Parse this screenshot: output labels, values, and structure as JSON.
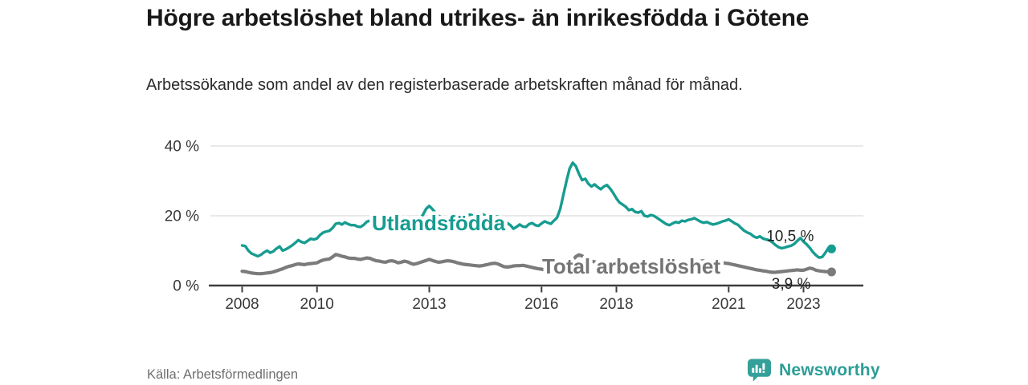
{
  "header": {
    "title": "Högre arbetslöshet bland utrikes- än inrikesfödda i Götene",
    "subtitle": "Arbetssökande som andel av den registerbaserade arbetskraften månad för månad."
  },
  "footer": {
    "source": "Källa: Arbetsförmedlingen",
    "brand": "Newsworthy"
  },
  "chart_data": {
    "type": "line",
    "title": "Högre arbetslöshet bland utrikes- än inrikesfödda i Götene",
    "subtitle": "Arbetssökande som andel av den registerbaserade arbetskraften månad för månad.",
    "x_interval": "monthly",
    "x_start": "2008-01",
    "x_end": "2023-10",
    "xlabel": "",
    "ylabel": "",
    "unit": "%",
    "ylim": [
      0,
      40
    ],
    "grid": "horizontal",
    "legend_position": "inline-labels",
    "y_ticks": [
      {
        "value": 0,
        "label": "0 %"
      },
      {
        "value": 20,
        "label": "20 %"
      },
      {
        "value": 40,
        "label": "40 %"
      }
    ],
    "x_ticks": [
      {
        "year": 2008,
        "label": "2008"
      },
      {
        "year": 2010,
        "label": "2010"
      },
      {
        "year": 2013,
        "label": "2013"
      },
      {
        "year": 2016,
        "label": "2016"
      },
      {
        "year": 2018,
        "label": "2018"
      },
      {
        "year": 2021,
        "label": "2021"
      },
      {
        "year": 2023,
        "label": "2023"
      }
    ],
    "series": [
      {
        "name": "Utlandsfödda",
        "color": "#169c90",
        "end_value": 10.5,
        "end_label": "10,5 %",
        "values": [
          11.5,
          11.3,
          10.0,
          9.2,
          8.8,
          8.4,
          8.8,
          9.5,
          10.0,
          9.4,
          9.8,
          10.6,
          11.2,
          10.0,
          10.4,
          10.9,
          11.5,
          12.2,
          13.0,
          12.5,
          12.2,
          12.8,
          13.4,
          13.2,
          13.5,
          14.5,
          15.2,
          15.5,
          15.7,
          16.5,
          17.7,
          17.9,
          17.5,
          18.1,
          17.6,
          17.3,
          17.3,
          16.9,
          16.8,
          17.4,
          18.3,
          18.6,
          17.5,
          16.7,
          17.0,
          17.6,
          18.0,
          18.3,
          18.0,
          17.4,
          16.9,
          17.2,
          17.8,
          18.0,
          17.6,
          17.9,
          18.4,
          19.2,
          20.3,
          22.0,
          22.8,
          21.9,
          20.8,
          20.0,
          19.5,
          19.2,
          19.5,
          19.8,
          20.0,
          19.7,
          19.5,
          19.8,
          20.0,
          20.3,
          20.1,
          19.9,
          20.2,
          20.4,
          20.1,
          19.9,
          20.0,
          19.8,
          19.8,
          19.4,
          18.6,
          17.9,
          17.3,
          16.3,
          16.8,
          17.5,
          16.9,
          16.8,
          17.6,
          17.9,
          17.3,
          17.1,
          17.8,
          18.4,
          18.0,
          17.7,
          18.6,
          19.5,
          22.0,
          26.0,
          30.0,
          33.5,
          35.2,
          34.2,
          32.0,
          30.2,
          30.6,
          29.2,
          28.4,
          29.0,
          28.2,
          27.6,
          28.4,
          28.8,
          27.8,
          26.5,
          25.0,
          23.8,
          23.2,
          22.6,
          21.6,
          21.9,
          21.1,
          20.9,
          21.3,
          20.0,
          19.8,
          20.2,
          20.0,
          19.4,
          18.8,
          18.2,
          17.6,
          17.3,
          17.8,
          18.2,
          18.0,
          18.6,
          18.4,
          18.8,
          19.0,
          19.3,
          18.8,
          18.3,
          18.0,
          18.2,
          17.8,
          17.5,
          17.7,
          18.0,
          18.4,
          18.6,
          19.0,
          18.4,
          17.8,
          17.4,
          16.5,
          15.7,
          15.2,
          14.8,
          14.1,
          13.7,
          14.1,
          13.5,
          13.2,
          13.0,
          12.4,
          11.6,
          11.0,
          10.7,
          10.9,
          11.2,
          11.4,
          11.9,
          12.8,
          13.6,
          12.6,
          11.8,
          10.8,
          9.6,
          8.7,
          8.0,
          8.2,
          9.4,
          10.8,
          10.5
        ]
      },
      {
        "name": "Total arbetslöshet",
        "color": "#7b7b7b",
        "end_value": 3.9,
        "end_label": "3,9 %",
        "values": [
          4.1,
          4.0,
          3.8,
          3.6,
          3.5,
          3.4,
          3.4,
          3.5,
          3.6,
          3.7,
          3.9,
          4.2,
          4.5,
          4.8,
          5.2,
          5.5,
          5.7,
          6.0,
          6.2,
          6.1,
          6.0,
          6.2,
          6.3,
          6.4,
          6.5,
          7.0,
          7.3,
          7.5,
          7.6,
          8.2,
          8.9,
          8.7,
          8.4,
          8.2,
          7.9,
          7.8,
          7.8,
          7.6,
          7.5,
          7.7,
          7.9,
          7.8,
          7.4,
          7.1,
          7.0,
          6.8,
          6.7,
          7.0,
          7.1,
          6.9,
          6.5,
          6.7,
          7.0,
          6.8,
          6.4,
          6.1,
          6.3,
          6.6,
          6.9,
          7.2,
          7.5,
          7.2,
          6.9,
          6.7,
          6.8,
          7.0,
          7.1,
          7.0,
          6.8,
          6.5,
          6.3,
          6.1,
          6.0,
          5.9,
          5.8,
          5.7,
          5.6,
          5.7,
          5.9,
          6.1,
          6.3,
          6.4,
          6.2,
          5.8,
          5.4,
          5.3,
          5.4,
          5.6,
          5.7,
          5.7,
          5.8,
          5.6,
          5.4,
          5.2,
          5.0,
          4.8,
          4.7,
          4.5,
          4.4,
          4.6,
          4.8,
          5.0,
          5.2,
          5.4,
          5.6,
          6.2,
          7.2,
          8.3,
          8.8,
          8.5,
          7.9,
          7.4,
          7.0,
          6.8,
          6.6,
          6.5,
          6.4,
          6.3,
          6.2,
          6.1,
          6.0,
          6.0,
          5.9,
          5.8,
          5.7,
          5.7,
          5.8,
          5.8,
          5.7,
          5.6,
          5.5,
          5.6,
          5.6,
          5.7,
          5.7,
          5.6,
          5.5,
          5.6,
          5.7,
          5.8,
          5.9,
          6.0,
          6.1,
          6.2,
          6.3,
          6.5,
          6.7,
          7.0,
          7.1,
          7.0,
          6.8,
          6.6,
          6.7,
          6.6,
          6.5,
          6.4,
          6.3,
          6.1,
          5.9,
          5.7,
          5.5,
          5.3,
          5.1,
          4.9,
          4.7,
          4.5,
          4.4,
          4.2,
          4.1,
          3.9,
          3.8,
          3.8,
          3.9,
          4.0,
          4.1,
          4.2,
          4.3,
          4.4,
          4.5,
          4.4,
          4.4,
          4.7,
          5.0,
          4.8,
          4.4,
          4.2,
          4.1,
          4.0,
          4.0,
          3.9
        ]
      }
    ]
  }
}
